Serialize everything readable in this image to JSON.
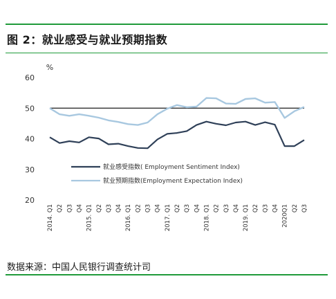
{
  "header": {
    "title": "图 2：就业感受与就业预期指数"
  },
  "footer": {
    "source": "数据来源：中国人民银行调查统计司"
  },
  "colors": {
    "rule": "#1f9a3a",
    "sentiment": "#2f4058",
    "expectation": "#a8c8e0",
    "reference": "#1a1a1a"
  },
  "chart_data": {
    "type": "line",
    "y_unit": "%",
    "ylim": [
      20,
      60
    ],
    "yticks": [
      "20",
      "30",
      "40",
      "50",
      "60"
    ],
    "reference_line": 50,
    "grid": false,
    "legend_position": "center-left",
    "x": [
      "2014. Q1",
      "Q2",
      "Q3",
      "Q4",
      "2015. Q1",
      "Q2",
      "Q3",
      "Q4",
      "2016. Q1",
      "Q2",
      "Q3",
      "Q4",
      "2017. Q1",
      "Q2",
      "Q3",
      "Q4",
      "2018. Q1",
      "Q2",
      "Q3",
      "Q4",
      "2019. Q1",
      "Q2",
      "Q3",
      "Q4",
      "2020Q1",
      "Q2",
      "Q3"
    ],
    "series": [
      {
        "name": "就业感受指数( Employment Sentiment Index)",
        "color": "#2f4058",
        "values": [
          40.5,
          38.6,
          39.2,
          38.8,
          40.5,
          40.1,
          38.2,
          38.4,
          37.6,
          37.0,
          36.9,
          39.8,
          41.6,
          41.9,
          42.5,
          44.5,
          45.6,
          44.9,
          44.4,
          45.3,
          45.6,
          44.5,
          45.4,
          44.6,
          37.6,
          37.6,
          39.6
        ]
      },
      {
        "name": "就业预期指数(Employment Expectation Index)",
        "color": "#a8c8e0",
        "values": [
          50.0,
          48.0,
          47.5,
          48.0,
          47.5,
          46.9,
          46.0,
          45.5,
          44.8,
          44.5,
          45.3,
          48.0,
          49.8,
          51.0,
          50.3,
          50.5,
          53.3,
          53.2,
          51.5,
          51.4,
          53.0,
          53.2,
          51.8,
          52.0,
          46.8,
          49.0,
          50.4
        ]
      }
    ]
  }
}
